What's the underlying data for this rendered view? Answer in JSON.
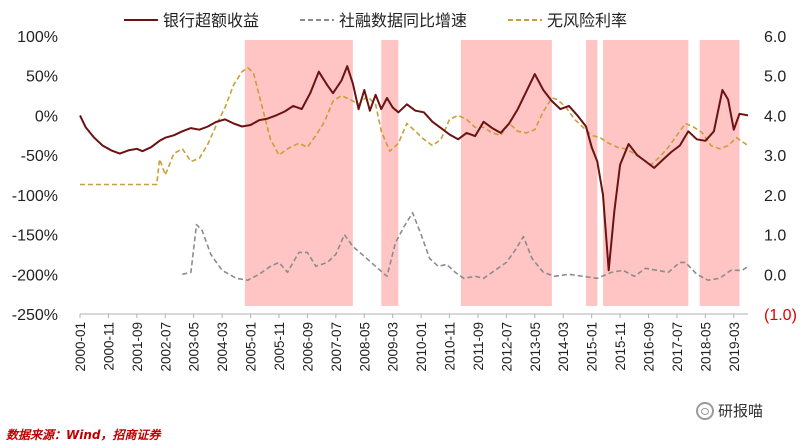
{
  "source_note": "数据来源：Wind，招商证券",
  "watermark": "研报喵",
  "chart_data": {
    "type": "line",
    "title": "",
    "legend_placement": "top",
    "grid": false,
    "x_start": "2000-01",
    "x_end": "2019-08",
    "xticks": [
      "2000-01",
      "2000-11",
      "2001-09",
      "2002-07",
      "2003-05",
      "2004-03",
      "2005-01",
      "2005-11",
      "2006-09",
      "2007-07",
      "2008-05",
      "2009-03",
      "2010-01",
      "2010-11",
      "2011-09",
      "2012-07",
      "2013-05",
      "2014-03",
      "2015-01",
      "2015-11",
      "2016-09",
      "2017-07",
      "2018-05",
      "2019-03"
    ],
    "y_left": {
      "ylim": [
        -250,
        100
      ],
      "ticks": [
        100,
        50,
        0,
        -50,
        -100,
        -150,
        -200,
        -250
      ],
      "tick_labels": [
        "100%",
        "50%",
        "0%",
        "-50%",
        "-100%",
        "-150%",
        "-200%",
        "-250%"
      ]
    },
    "y_right": {
      "ylim": [
        -1.0,
        6.0
      ],
      "ticks": [
        6,
        5,
        4,
        3,
        2,
        1,
        0,
        -1
      ],
      "tick_labels": [
        "6.0",
        "5.0",
        "4.0",
        "3.0",
        "2.0",
        "1.0",
        "0.0",
        "(1.0)"
      ]
    },
    "colors": {
      "bank": "#6b1212",
      "social": "#8c8c8c",
      "riskfree": "#c8a03a",
      "shade": "#ffc4c4",
      "negative_label": "#e00000"
    },
    "shaded_periods": [
      [
        "2004-11",
        "2008-01"
      ],
      [
        "2008-11",
        "2009-05"
      ],
      [
        "2011-03",
        "2013-11"
      ],
      [
        "2014-11",
        "2015-03"
      ],
      [
        "2015-05",
        "2017-11"
      ],
      [
        "2018-03",
        "2019-05"
      ]
    ],
    "series": [
      {
        "name": "银行超额收益",
        "axis": "left",
        "style": "solid",
        "points": [
          [
            "2000-01",
            0
          ],
          [
            "2000-03",
            -15
          ],
          [
            "2000-06",
            -28
          ],
          [
            "2000-09",
            -38
          ],
          [
            "2000-12",
            -44
          ],
          [
            "2001-03",
            -48
          ],
          [
            "2001-06",
            -44
          ],
          [
            "2001-09",
            -42
          ],
          [
            "2001-11",
            -45
          ],
          [
            "2002-02",
            -40
          ],
          [
            "2002-05",
            -32
          ],
          [
            "2002-07",
            -28
          ],
          [
            "2002-10",
            -25
          ],
          [
            "2003-01",
            -20
          ],
          [
            "2003-04",
            -16
          ],
          [
            "2003-07",
            -18
          ],
          [
            "2003-10",
            -14
          ],
          [
            "2004-01",
            -8
          ],
          [
            "2004-04",
            -5
          ],
          [
            "2004-07",
            -10
          ],
          [
            "2004-10",
            -14
          ],
          [
            "2005-01",
            -12
          ],
          [
            "2005-04",
            -6
          ],
          [
            "2005-07",
            -4
          ],
          [
            "2005-10",
            0
          ],
          [
            "2006-01",
            5
          ],
          [
            "2006-04",
            12
          ],
          [
            "2006-07",
            8
          ],
          [
            "2006-10",
            28
          ],
          [
            "2007-01",
            55
          ],
          [
            "2007-04",
            38
          ],
          [
            "2007-06",
            28
          ],
          [
            "2007-09",
            44
          ],
          [
            "2007-11",
            62
          ],
          [
            "2008-01",
            40
          ],
          [
            "2008-03",
            8
          ],
          [
            "2008-05",
            32
          ],
          [
            "2008-07",
            6
          ],
          [
            "2008-09",
            26
          ],
          [
            "2008-11",
            8
          ],
          [
            "2009-01",
            22
          ],
          [
            "2009-03",
            10
          ],
          [
            "2009-05",
            4
          ],
          [
            "2009-08",
            14
          ],
          [
            "2009-11",
            6
          ],
          [
            "2010-02",
            4
          ],
          [
            "2010-05",
            -8
          ],
          [
            "2010-08",
            -16
          ],
          [
            "2010-11",
            -24
          ],
          [
            "2011-02",
            -30
          ],
          [
            "2011-05",
            -22
          ],
          [
            "2011-08",
            -26
          ],
          [
            "2011-11",
            -8
          ],
          [
            "2012-02",
            -16
          ],
          [
            "2012-05",
            -22
          ],
          [
            "2012-08",
            -10
          ],
          [
            "2012-11",
            8
          ],
          [
            "2013-02",
            30
          ],
          [
            "2013-05",
            52
          ],
          [
            "2013-08",
            32
          ],
          [
            "2013-11",
            18
          ],
          [
            "2014-02",
            8
          ],
          [
            "2014-05",
            12
          ],
          [
            "2014-08",
            0
          ],
          [
            "2014-11",
            -14
          ],
          [
            "2015-01",
            -40
          ],
          [
            "2015-03",
            -58
          ],
          [
            "2015-05",
            -100
          ],
          [
            "2015-07",
            -195
          ],
          [
            "2015-09",
            -120
          ],
          [
            "2015-11",
            -62
          ],
          [
            "2016-02",
            -36
          ],
          [
            "2016-05",
            -50
          ],
          [
            "2016-08",
            -58
          ],
          [
            "2016-11",
            -66
          ],
          [
            "2017-02",
            -56
          ],
          [
            "2017-05",
            -46
          ],
          [
            "2017-08",
            -38
          ],
          [
            "2017-11",
            -20
          ],
          [
            "2018-02",
            -30
          ],
          [
            "2018-05",
            -32
          ],
          [
            "2018-08",
            -20
          ],
          [
            "2018-11",
            32
          ],
          [
            "2019-01",
            20
          ],
          [
            "2019-03",
            -18
          ],
          [
            "2019-05",
            2
          ],
          [
            "2019-08",
            0
          ]
        ]
      },
      {
        "name": "社融数据同比增速",
        "axis": "right",
        "style": "dashed",
        "points": [
          [
            "2003-01",
            0.0
          ],
          [
            "2003-04",
            0.05
          ],
          [
            "2003-06",
            1.25
          ],
          [
            "2003-08",
            1.1
          ],
          [
            "2003-11",
            0.5
          ],
          [
            "2004-03",
            0.1
          ],
          [
            "2004-08",
            -0.1
          ],
          [
            "2004-12",
            -0.15
          ],
          [
            "2005-04",
            0.0
          ],
          [
            "2005-08",
            0.2
          ],
          [
            "2005-11",
            0.3
          ],
          [
            "2006-02",
            0.05
          ],
          [
            "2006-06",
            0.55
          ],
          [
            "2006-09",
            0.55
          ],
          [
            "2006-12",
            0.2
          ],
          [
            "2007-04",
            0.3
          ],
          [
            "2007-07",
            0.5
          ],
          [
            "2007-10",
            1.0
          ],
          [
            "2008-01",
            0.7
          ],
          [
            "2008-05",
            0.45
          ],
          [
            "2008-09",
            0.2
          ],
          [
            "2009-01",
            -0.05
          ],
          [
            "2009-04",
            0.8
          ],
          [
            "2009-07",
            1.2
          ],
          [
            "2009-10",
            1.55
          ],
          [
            "2010-01",
            1.0
          ],
          [
            "2010-04",
            0.4
          ],
          [
            "2010-07",
            0.2
          ],
          [
            "2010-10",
            0.25
          ],
          [
            "2011-01",
            0.05
          ],
          [
            "2011-04",
            -0.1
          ],
          [
            "2011-08",
            -0.05
          ],
          [
            "2011-11",
            -0.1
          ],
          [
            "2012-03",
            0.1
          ],
          [
            "2012-07",
            0.3
          ],
          [
            "2012-10",
            0.6
          ],
          [
            "2013-01",
            0.95
          ],
          [
            "2013-04",
            0.4
          ],
          [
            "2013-08",
            0.05
          ],
          [
            "2013-12",
            -0.05
          ],
          [
            "2014-05",
            0.0
          ],
          [
            "2014-10",
            -0.05
          ],
          [
            "2015-03",
            -0.1
          ],
          [
            "2015-08",
            0.05
          ],
          [
            "2015-12",
            0.1
          ],
          [
            "2016-04",
            -0.05
          ],
          [
            "2016-08",
            0.15
          ],
          [
            "2016-12",
            0.1
          ],
          [
            "2017-04",
            0.05
          ],
          [
            "2017-08",
            0.3
          ],
          [
            "2017-10",
            0.3
          ],
          [
            "2018-02",
            0.0
          ],
          [
            "2018-06",
            -0.15
          ],
          [
            "2018-10",
            -0.1
          ],
          [
            "2019-02",
            0.1
          ],
          [
            "2019-06",
            0.1
          ],
          [
            "2019-08",
            0.2
          ]
        ]
      },
      {
        "name": "无风险利率",
        "axis": "left",
        "style": "dashed",
        "points": [
          [
            "2000-01",
            -87
          ],
          [
            "2002-04",
            -87
          ],
          [
            "2002-05",
            -55
          ],
          [
            "2002-07",
            -75
          ],
          [
            "2002-10",
            -48
          ],
          [
            "2003-01",
            -42
          ],
          [
            "2003-04",
            -58
          ],
          [
            "2003-07",
            -54
          ],
          [
            "2003-10",
            -36
          ],
          [
            "2004-01",
            -12
          ],
          [
            "2004-04",
            10
          ],
          [
            "2004-07",
            38
          ],
          [
            "2004-10",
            55
          ],
          [
            "2004-12",
            60
          ],
          [
            "2005-02",
            54
          ],
          [
            "2005-05",
            12
          ],
          [
            "2005-08",
            -30
          ],
          [
            "2005-11",
            -50
          ],
          [
            "2006-02",
            -42
          ],
          [
            "2006-06",
            -35
          ],
          [
            "2006-09",
            -40
          ],
          [
            "2006-12",
            -25
          ],
          [
            "2007-03",
            -8
          ],
          [
            "2007-06",
            18
          ],
          [
            "2007-09",
            25
          ],
          [
            "2007-12",
            20
          ],
          [
            "2008-03",
            14
          ],
          [
            "2008-06",
            24
          ],
          [
            "2008-09",
            14
          ],
          [
            "2008-11",
            -20
          ],
          [
            "2009-02",
            -45
          ],
          [
            "2009-05",
            -35
          ],
          [
            "2009-08",
            -10
          ],
          [
            "2009-11",
            -20
          ],
          [
            "2010-02",
            -30
          ],
          [
            "2010-05",
            -38
          ],
          [
            "2010-08",
            -30
          ],
          [
            "2010-11",
            -5
          ],
          [
            "2011-02",
            0
          ],
          [
            "2011-05",
            -5
          ],
          [
            "2011-08",
            -15
          ],
          [
            "2011-11",
            -15
          ],
          [
            "2012-02",
            -22
          ],
          [
            "2012-05",
            -25
          ],
          [
            "2012-08",
            -10
          ],
          [
            "2012-11",
            -20
          ],
          [
            "2013-02",
            -22
          ],
          [
            "2013-05",
            -18
          ],
          [
            "2013-08",
            5
          ],
          [
            "2013-11",
            22
          ],
          [
            "2014-01",
            20
          ],
          [
            "2014-04",
            10
          ],
          [
            "2014-07",
            -5
          ],
          [
            "2014-10",
            -15
          ],
          [
            "2015-01",
            -25
          ],
          [
            "2015-04",
            -28
          ],
          [
            "2015-07",
            -35
          ],
          [
            "2015-10",
            -40
          ],
          [
            "2016-01",
            -42
          ],
          [
            "2016-04",
            -48
          ],
          [
            "2016-07",
            -55
          ],
          [
            "2016-10",
            -62
          ],
          [
            "2017-01",
            -52
          ],
          [
            "2017-04",
            -40
          ],
          [
            "2017-07",
            -25
          ],
          [
            "2017-10",
            -10
          ],
          [
            "2018-01",
            -15
          ],
          [
            "2018-04",
            -22
          ],
          [
            "2018-07",
            -38
          ],
          [
            "2018-10",
            -42
          ],
          [
            "2019-01",
            -38
          ],
          [
            "2019-04",
            -28
          ],
          [
            "2019-08",
            -38
          ]
        ]
      }
    ]
  }
}
